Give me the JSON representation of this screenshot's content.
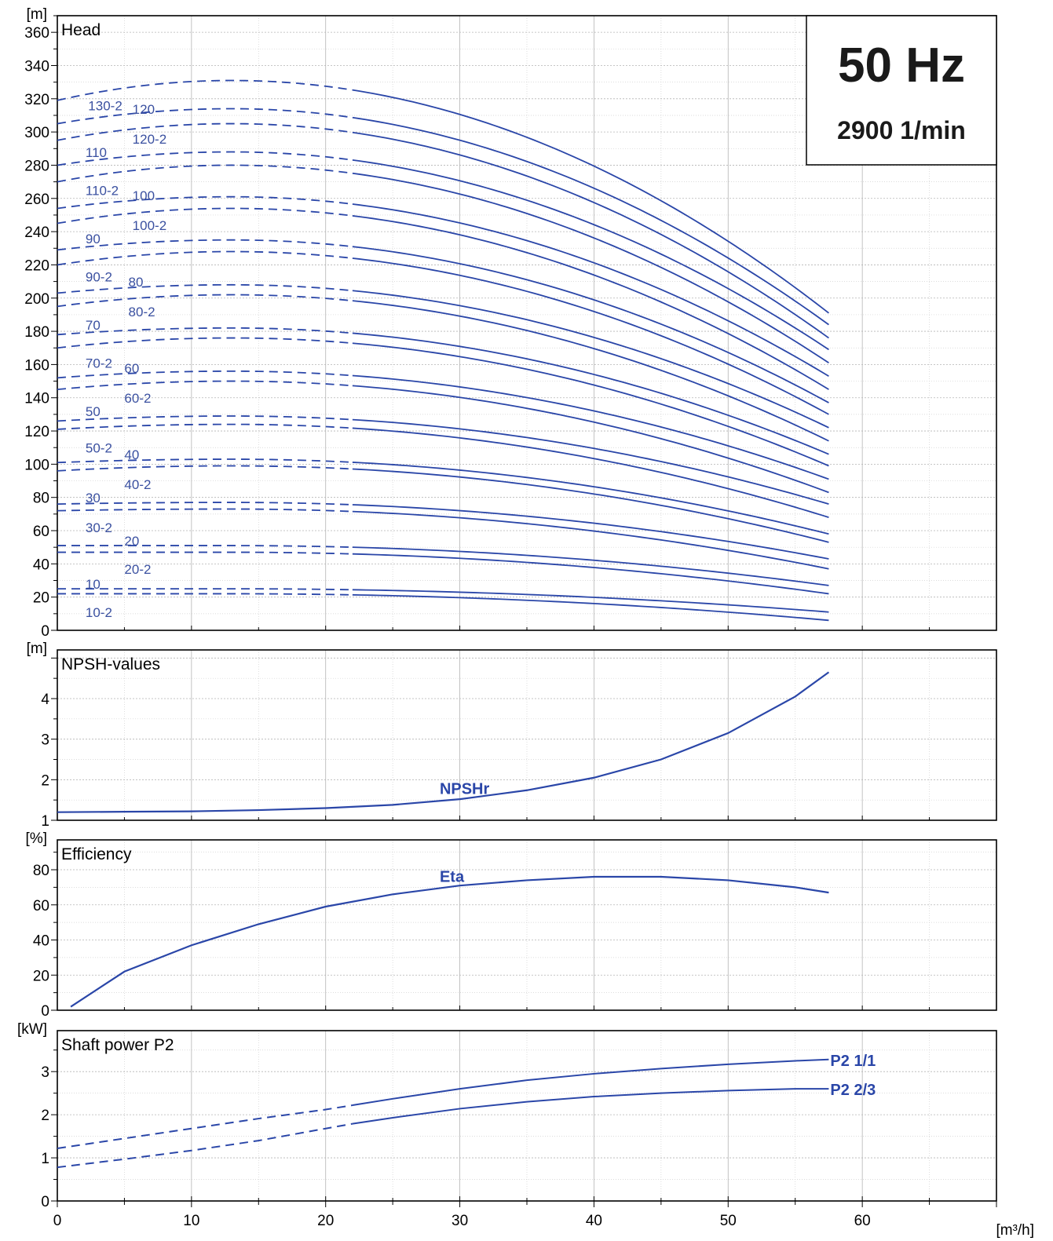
{
  "colors": {
    "curve": "#2a46a8",
    "grid": "#b4b4b4",
    "frame": "#000000"
  },
  "info_box": {
    "frequency": "50 Hz",
    "speed": "2900 1/min"
  },
  "x_axis": {
    "unit": "[m³/h]",
    "range": [
      0,
      70
    ],
    "ticks": [
      "0",
      "10",
      "20",
      "30",
      "40",
      "50",
      "60"
    ]
  },
  "chart_data": [
    {
      "type": "line",
      "panel": "head",
      "title": "Head",
      "ylabel": "[m]",
      "xlim": [
        0,
        70
      ],
      "ylim": [
        0,
        370
      ],
      "yticks": [
        0,
        20,
        40,
        60,
        80,
        100,
        120,
        140,
        160,
        180,
        200,
        220,
        240,
        260,
        280,
        300,
        320,
        340,
        360
      ],
      "grid": true,
      "note": "",
      "series": [
        {
          "name": "130-2",
          "shutoff": 319,
          "peak_x": 13,
          "peak": 331,
          "end_head": 191
        },
        {
          "name": "120",
          "shutoff": 305,
          "peak_x": 13,
          "peak": 314,
          "end_head": 184
        },
        {
          "name": "120-2",
          "shutoff": 295,
          "peak_x": 13,
          "peak": 305,
          "end_head": 176
        },
        {
          "name": "110",
          "shutoff": 280,
          "peak_x": 13,
          "peak": 288,
          "end_head": 169
        },
        {
          "name": "110-2",
          "shutoff": 270,
          "peak_x": 13,
          "peak": 280,
          "end_head": 161
        },
        {
          "name": "100",
          "shutoff": 254,
          "peak_x": 13,
          "peak": 261,
          "end_head": 153
        },
        {
          "name": "100-2",
          "shutoff": 245,
          "peak_x": 13,
          "peak": 254,
          "end_head": 145
        },
        {
          "name": "90",
          "shutoff": 229,
          "peak_x": 13,
          "peak": 235,
          "end_head": 137
        },
        {
          "name": "90-2",
          "shutoff": 220,
          "peak_x": 13,
          "peak": 228,
          "end_head": 130
        },
        {
          "name": "80",
          "shutoff": 203,
          "peak_x": 13,
          "peak": 208,
          "end_head": 122
        },
        {
          "name": "80-2",
          "shutoff": 195,
          "peak_x": 13,
          "peak": 202,
          "end_head": 114
        },
        {
          "name": "70",
          "shutoff": 178,
          "peak_x": 13,
          "peak": 182,
          "end_head": 106
        },
        {
          "name": "70-2",
          "shutoff": 170,
          "peak_x": 13,
          "peak": 176,
          "end_head": 99
        },
        {
          "name": "60",
          "shutoff": 152,
          "peak_x": 13,
          "peak": 156,
          "end_head": 91
        },
        {
          "name": "60-2",
          "shutoff": 145,
          "peak_x": 13,
          "peak": 150,
          "end_head": 83
        },
        {
          "name": "50",
          "shutoff": 126,
          "peak_x": 13,
          "peak": 129,
          "end_head": 76
        },
        {
          "name": "50-2",
          "shutoff": 121,
          "peak_x": 13,
          "peak": 124,
          "end_head": 68
        },
        {
          "name": "40",
          "shutoff": 101,
          "peak_x": 13,
          "peak": 103,
          "end_head": 58
        },
        {
          "name": "40-2",
          "shutoff": 96,
          "peak_x": 13,
          "peak": 99,
          "end_head": 53
        },
        {
          "name": "30",
          "shutoff": 76,
          "peak_x": 13,
          "peak": 77,
          "end_head": 43
        },
        {
          "name": "30-2",
          "shutoff": 72,
          "peak_x": 13,
          "peak": 73,
          "end_head": 37
        },
        {
          "name": "20",
          "shutoff": 51,
          "peak_x": 13,
          "peak": 51,
          "end_head": 27
        },
        {
          "name": "20-2",
          "shutoff": 47,
          "peak_x": 13,
          "peak": 47,
          "end_head": 22
        },
        {
          "name": "10",
          "shutoff": 25,
          "peak_x": 13,
          "peak": 25,
          "end_head": 11
        },
        {
          "name": "10-2",
          "shutoff": 22,
          "peak_x": 13,
          "peak": 22,
          "end_head": 6
        }
      ],
      "dashed_until_x": 22,
      "end_x": 57.5,
      "curve_labels": [
        {
          "text": "130-2",
          "x": 2.3,
          "y": 313
        },
        {
          "text": "120",
          "x": 5.6,
          "y": 311
        },
        {
          "text": "120-2",
          "x": 5.6,
          "y": 293
        },
        {
          "text": "110",
          "x": 2.1,
          "y": 285
        },
        {
          "text": "110-2",
          "x": 2.1,
          "y": 262
        },
        {
          "text": "100",
          "x": 5.6,
          "y": 259
        },
        {
          "text": "100-2",
          "x": 5.6,
          "y": 241
        },
        {
          "text": "90",
          "x": 2.1,
          "y": 233
        },
        {
          "text": "90-2",
          "x": 2.1,
          "y": 210
        },
        {
          "text": "80",
          "x": 5.3,
          "y": 207
        },
        {
          "text": "80-2",
          "x": 5.3,
          "y": 189
        },
        {
          "text": "70",
          "x": 2.1,
          "y": 181
        },
        {
          "text": "70-2",
          "x": 2.1,
          "y": 158
        },
        {
          "text": "60",
          "x": 5.0,
          "y": 155
        },
        {
          "text": "60-2",
          "x": 5.0,
          "y": 137
        },
        {
          "text": "50",
          "x": 2.1,
          "y": 129
        },
        {
          "text": "50-2",
          "x": 2.1,
          "y": 107
        },
        {
          "text": "40",
          "x": 5.0,
          "y": 103
        },
        {
          "text": "40-2",
          "x": 5.0,
          "y": 85
        },
        {
          "text": "30",
          "x": 2.1,
          "y": 77
        },
        {
          "text": "30-2",
          "x": 2.1,
          "y": 59
        },
        {
          "text": "20",
          "x": 5.0,
          "y": 51
        },
        {
          "text": "20-2",
          "x": 5.0,
          "y": 34
        },
        {
          "text": "10",
          "x": 2.1,
          "y": 25
        },
        {
          "text": "10-2",
          "x": 2.1,
          "y": 8
        }
      ]
    },
    {
      "type": "line",
      "panel": "npsh",
      "title": "NPSH-values",
      "ylabel": "[m]",
      "xlim": [
        0,
        70
      ],
      "ylim": [
        1,
        5.2
      ],
      "yticks": [
        1,
        2,
        3,
        4
      ],
      "grid": true,
      "series": [
        {
          "name": "NPSHr",
          "x": [
            0,
            5,
            10,
            15,
            20,
            25,
            30,
            35,
            40,
            45,
            50,
            55,
            57.5
          ],
          "y": [
            1.2,
            1.21,
            1.22,
            1.25,
            1.3,
            1.38,
            1.52,
            1.74,
            2.05,
            2.5,
            3.15,
            4.05,
            4.65
          ]
        }
      ],
      "series_label": {
        "text": "NPSHr",
        "x": 28.5,
        "y": 1.65
      }
    },
    {
      "type": "line",
      "panel": "efficiency",
      "title": "Efficiency",
      "ylabel": "[%]",
      "xlim": [
        0,
        70
      ],
      "ylim": [
        0,
        97
      ],
      "yticks": [
        0,
        20,
        40,
        60,
        80
      ],
      "grid": true,
      "series": [
        {
          "name": "Eta",
          "x": [
            1,
            5,
            10,
            15,
            20,
            25,
            30,
            35,
            40,
            45,
            50,
            55,
            57.5
          ],
          "y": [
            2,
            22,
            37,
            49,
            59,
            66,
            71,
            74,
            76,
            76,
            74,
            70,
            67
          ]
        }
      ],
      "series_label": {
        "text": "Eta",
        "x": 28.5,
        "y": 73
      }
    },
    {
      "type": "line",
      "panel": "power",
      "title": "Shaft power P2",
      "ylabel": "[kW]",
      "xlim": [
        0,
        70
      ],
      "ylim": [
        0,
        3.95
      ],
      "yticks": [
        0,
        1,
        2,
        3
      ],
      "grid": true,
      "dashed_until_x": 22,
      "series": [
        {
          "name": "P2 1/1",
          "x": [
            0,
            5,
            10,
            15,
            20,
            22,
            25,
            30,
            35,
            40,
            45,
            50,
            55,
            57.5
          ],
          "y": [
            1.22,
            1.45,
            1.68,
            1.91,
            2.12,
            2.22,
            2.37,
            2.6,
            2.8,
            2.95,
            3.07,
            3.17,
            3.25,
            3.28
          ]
        },
        {
          "name": "P2 2/3",
          "x": [
            0,
            5,
            10,
            15,
            20,
            22,
            25,
            30,
            35,
            40,
            45,
            50,
            55,
            57.5
          ],
          "y": [
            0.78,
            0.97,
            1.17,
            1.4,
            1.68,
            1.79,
            1.93,
            2.14,
            2.3,
            2.42,
            2.5,
            2.56,
            2.6,
            2.6
          ]
        }
      ]
    }
  ]
}
